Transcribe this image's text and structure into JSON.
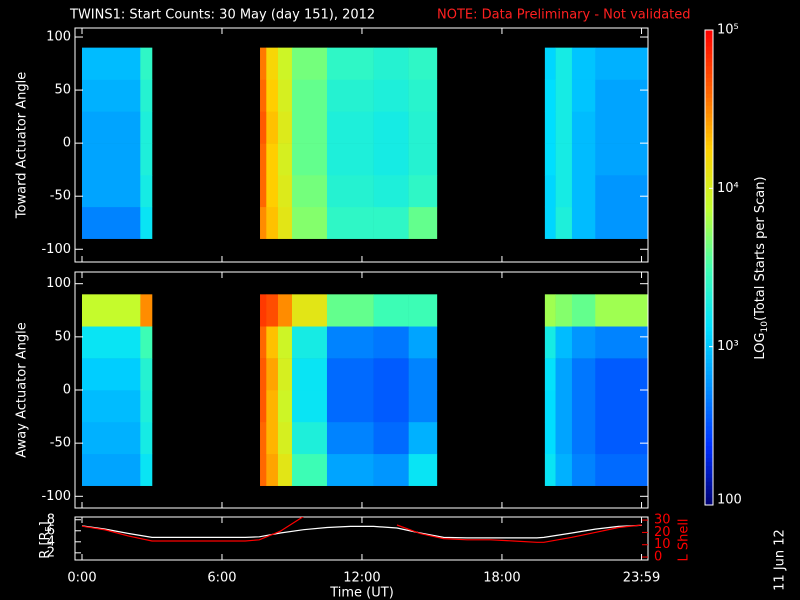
{
  "chart_data": [
    {
      "type": "heatmap",
      "title": "TWINS1: Start Counts: 30 May (day 151), 2012",
      "note": "NOTE: Data Preliminary - Not validated",
      "ylabel": "Toward Actuator Angle",
      "ylim": [
        -112,
        108.5
      ],
      "yticks": [
        -100,
        -50,
        0,
        50,
        100
      ],
      "x": [
        0,
        2.5,
        3.0,
        7.63,
        7.9,
        8.4,
        9.0,
        10.5,
        12.5,
        14.0,
        15.21,
        19.84,
        20.3,
        21.0,
        22.0,
        24.26
      ],
      "y": [
        -90,
        -60,
        -30,
        0,
        30,
        60,
        90
      ],
      "values": [
        [
          500,
          700,
          700,
          700,
          800,
          900
        ],
        [
          1500,
          1800,
          2000,
          2000,
          2200,
          2500
        ],
        null,
        [
          30000,
          40000,
          40000,
          45000,
          40000,
          35000
        ],
        [
          20000,
          18000,
          18000,
          20000,
          18000,
          16000
        ],
        [
          12000,
          11000,
          10000,
          11000,
          10000,
          9000
        ],
        [
          5000,
          4500,
          4000,
          4000,
          4000,
          4500
        ],
        [
          2500,
          2200,
          2000,
          2000,
          2200,
          2500
        ],
        [
          2500,
          2000,
          1800,
          1800,
          2000,
          2200
        ],
        [
          4000,
          2500,
          2200,
          2200,
          2300,
          2500
        ],
        null,
        [
          1200,
          1200,
          1300,
          1300,
          1300,
          1200
        ],
        [
          2000,
          1800,
          1800,
          1800,
          1800,
          1800
        ],
        [
          900,
          900,
          900,
          900,
          1000,
          1000
        ],
        [
          600,
          600,
          700,
          700,
          700,
          800
        ]
      ],
      "colorbar_label": [
        "LOG",
        "10",
        "(Total Starts per Scan)"
      ],
      "clim": [
        100,
        100000
      ],
      "log": true,
      "cticks": [
        100,
        {
          "value": 1000,
          "label": "10³"
        },
        {
          "value": 10000,
          "label": "10⁴"
        },
        {
          "value": 100000,
          "label": "10⁵"
        }
      ],
      "colors": [
        "#000070",
        "#0030ff",
        "#0090ff",
        "#00e0ff",
        "#40ffb0",
        "#c0ff30",
        "#ffd000",
        "#ff6000",
        "#ff0000"
      ]
    },
    {
      "type": "heatmap",
      "ylabel": "Away Actuator Angle",
      "ylim": [
        -111,
        111
      ],
      "yticks": [
        -100,
        -50,
        0,
        50,
        100
      ],
      "x": [
        0,
        2.5,
        3.0,
        7.63,
        7.9,
        8.4,
        9.0,
        10.5,
        12.5,
        14.0,
        15.21,
        19.84,
        20.3,
        21.0,
        22.0,
        24.26
      ],
      "y": [
        -90,
        -60,
        -30,
        0,
        30,
        60,
        90
      ],
      "values": [
        [
          700,
          800,
          900,
          1100,
          1500,
          8000
        ],
        [
          1500,
          1800,
          2000,
          2200,
          3000,
          30000
        ],
        null,
        [
          40000,
          40000,
          45000,
          45000,
          40000,
          60000
        ],
        [
          25000,
          22000,
          22000,
          25000,
          20000,
          50000
        ],
        [
          12000,
          10000,
          9000,
          10000,
          9000,
          30000
        ],
        [
          3000,
          2000,
          1500,
          1500,
          1800,
          12000
        ],
        [
          700,
          500,
          400,
          400,
          500,
          4000
        ],
        [
          600,
          400,
          350,
          350,
          450,
          3000
        ],
        [
          1500,
          800,
          500,
          500,
          700,
          3000
        ],
        null,
        [
          1500,
          1300,
          1300,
          1400,
          1800,
          6000
        ],
        [
          800,
          700,
          700,
          700,
          900,
          5000
        ],
        [
          500,
          450,
          450,
          450,
          600,
          4000
        ],
        [
          400,
          350,
          350,
          350,
          500,
          6000
        ]
      ]
    },
    {
      "type": "line",
      "xlabel": "Time (UT)",
      "xlim": [
        -0.3,
        24.26
      ],
      "xticks": [
        {
          "value": 0,
          "label": "0:00"
        },
        {
          "value": 6,
          "label": "6:00"
        },
        {
          "value": 12,
          "label": "12:00"
        },
        {
          "value": 18,
          "label": "18:00"
        },
        {
          "value": 23.983,
          "label": "23:59"
        }
      ],
      "ylabel": [
        "R [R",
        "E",
        "]"
      ],
      "ylim": [
        0.7,
        8.5
      ],
      "yticks": [
        2,
        4,
        6,
        8
      ],
      "y2label": "L Shell",
      "y2lim": [
        -2.4,
        32.5
      ],
      "y2ticks": [
        0,
        10,
        20,
        30
      ],
      "y2color": "#ff0000",
      "x": [
        0,
        1,
        2,
        3,
        4,
        5,
        6,
        7,
        7.6,
        8.5,
        9.5,
        10.5,
        11.5,
        12,
        12.5,
        13.5,
        14.5,
        15.5,
        16.5,
        17.5,
        18.5,
        19.5,
        19.8,
        21,
        22,
        23,
        24
      ],
      "series": [
        {
          "color": "#ffffff",
          "values": [
            6.9,
            6.3,
            5.5,
            4.8,
            4.8,
            4.8,
            4.8,
            4.8,
            4.9,
            5.6,
            6.2,
            6.6,
            6.8,
            6.8,
            6.8,
            6.5,
            5.6,
            4.8,
            4.7,
            4.7,
            4.7,
            4.7,
            4.8,
            5.6,
            6.3,
            6.8,
            7.0
          ]
        },
        {
          "color": "#ff0000",
          "axis": "y2",
          "values": [
            25,
            22,
            17,
            13,
            13,
            13,
            13,
            13,
            14,
            21,
            33,
            null,
            null,
            null,
            null,
            26,
            19,
            15,
            14,
            14,
            13,
            12,
            12,
            16,
            20,
            24,
            26
          ]
        }
      ],
      "date_stamp": "11 Jun 12"
    }
  ]
}
